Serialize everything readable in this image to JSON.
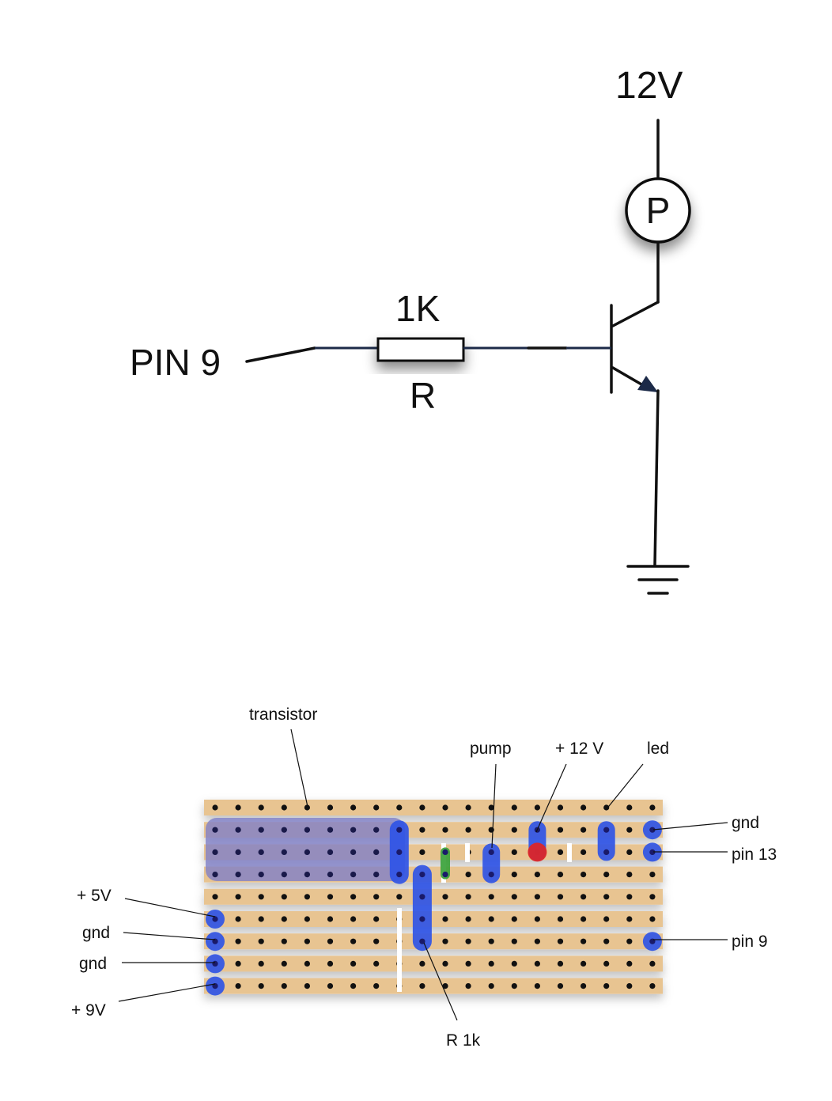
{
  "schematic": {
    "supply_label": "12V",
    "pump_label": "P",
    "resistor_value": "1K",
    "resistor_name": "R",
    "input_label": "PIN 9"
  },
  "stripboard": {
    "colors": {
      "strip": "#e8c491",
      "hole": "#111111",
      "link_blue": "#2f54e6",
      "link_red": "#e02424",
      "link_green": "#3aa23a",
      "transistor_area": "#8f8fcf",
      "cut": "#ffffff"
    },
    "rows": 9,
    "cols": 20,
    "labels": {
      "transistor": "transistor",
      "pump": "pump",
      "plus12v": "+ 12 V",
      "led": "led",
      "gnd_right": "gnd",
      "pin13": "pin 13",
      "pin9": "pin 9",
      "plus5v": "+ 5V",
      "gnd_left_1": "gnd",
      "gnd_left_2": "gnd",
      "plus9v": "+ 9V",
      "r1k": "R 1k"
    }
  }
}
